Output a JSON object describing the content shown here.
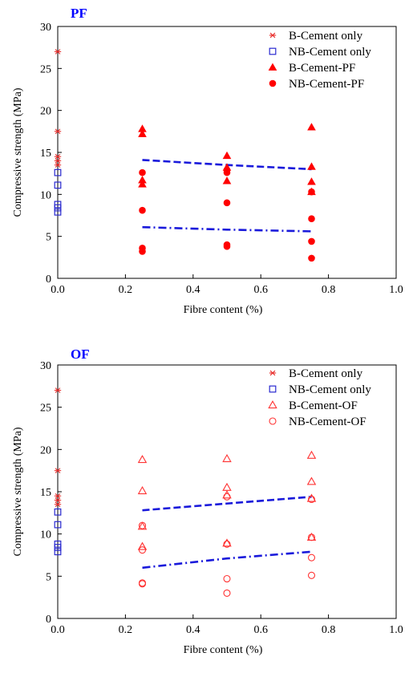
{
  "chart_data": [
    {
      "type": "scatter",
      "title": "PF",
      "xlabel": "Fibre content (%)",
      "ylabel": "Compressive strength (MPa)",
      "xlim": [
        0,
        1.0
      ],
      "ylim": [
        0,
        30
      ],
      "x_ticks": [
        "0.0",
        "0.2",
        "0.4",
        "0.6",
        "0.8",
        "1.0"
      ],
      "y_ticks": [
        "0",
        "5",
        "10",
        "15",
        "20",
        "25",
        "30"
      ],
      "legend_position": "top-right",
      "series": [
        {
          "name": "B-Cement only",
          "marker": "asterisk",
          "color": "#e8302e",
          "points": [
            [
              0,
              27.0
            ],
            [
              0,
              17.5
            ],
            [
              0,
              14.5
            ],
            [
              0,
              14.0
            ],
            [
              0,
              13.5
            ]
          ]
        },
        {
          "name": "NB-Cement only",
          "marker": "square-open",
          "color": "#2a2ad0",
          "points": [
            [
              0,
              12.6
            ],
            [
              0,
              11.1
            ],
            [
              0,
              8.8
            ],
            [
              0,
              8.4
            ],
            [
              0,
              7.9
            ]
          ]
        },
        {
          "name": "B-Cement-PF",
          "marker": "triangle-filled",
          "color": "#ff0000",
          "points": [
            [
              0.25,
              17.8
            ],
            [
              0.25,
              17.2
            ],
            [
              0.25,
              11.7
            ],
            [
              0.25,
              11.2
            ],
            [
              0.5,
              14.6
            ],
            [
              0.5,
              13.2
            ],
            [
              0.5,
              11.6
            ],
            [
              0.75,
              18.0
            ],
            [
              0.75,
              13.3
            ],
            [
              0.75,
              11.5
            ],
            [
              0.75,
              10.3
            ]
          ]
        },
        {
          "name": "NB-Cement-PF",
          "marker": "circle-filled",
          "color": "#ff0000",
          "points": [
            [
              0.25,
              12.6
            ],
            [
              0.25,
              8.1
            ],
            [
              0.25,
              3.6
            ],
            [
              0.25,
              3.2
            ],
            [
              0.5,
              12.9
            ],
            [
              0.5,
              12.6
            ],
            [
              0.5,
              9.0
            ],
            [
              0.5,
              4.0
            ],
            [
              0.5,
              3.8
            ],
            [
              0.75,
              10.3
            ],
            [
              0.75,
              7.1
            ],
            [
              0.75,
              4.4
            ],
            [
              0.75,
              2.4
            ]
          ]
        }
      ],
      "trend_lines": [
        {
          "style": "dashed",
          "color": "#1a1adb",
          "x": [
            0.25,
            0.5,
            0.75
          ],
          "y": [
            14.1,
            13.5,
            13.0
          ]
        },
        {
          "style": "dash-dot",
          "color": "#1a1adb",
          "x": [
            0.25,
            0.5,
            0.75
          ],
          "y": [
            6.1,
            5.8,
            5.6
          ]
        }
      ]
    },
    {
      "type": "scatter",
      "title": "OF",
      "xlabel": "Fibre content (%)",
      "ylabel": "Compressive strength (MPa)",
      "xlim": [
        0,
        1.0
      ],
      "ylim": [
        0,
        30
      ],
      "x_ticks": [
        "0.0",
        "0.2",
        "0.4",
        "0.6",
        "0.8",
        "1.0"
      ],
      "y_ticks": [
        "0",
        "5",
        "10",
        "15",
        "20",
        "25",
        "30"
      ],
      "legend_position": "top-right",
      "series": [
        {
          "name": "B-Cement only",
          "marker": "asterisk",
          "color": "#e8302e",
          "points": [
            [
              0,
              27.0
            ],
            [
              0,
              17.5
            ],
            [
              0,
              14.5
            ],
            [
              0,
              14.0
            ],
            [
              0,
              13.5
            ]
          ]
        },
        {
          "name": "NB-Cement only",
          "marker": "square-open",
          "color": "#2a2ad0",
          "points": [
            [
              0,
              12.6
            ],
            [
              0,
              11.1
            ],
            [
              0,
              8.8
            ],
            [
              0,
              8.4
            ],
            [
              0,
              7.9
            ]
          ]
        },
        {
          "name": "B-Cement-OF",
          "marker": "triangle-open",
          "color": "#ff3333",
          "points": [
            [
              0.25,
              18.8
            ],
            [
              0.25,
              15.1
            ],
            [
              0.25,
              10.9
            ],
            [
              0.25,
              8.5
            ],
            [
              0.5,
              18.9
            ],
            [
              0.5,
              15.5
            ],
            [
              0.5,
              14.6
            ],
            [
              0.5,
              8.9
            ],
            [
              0.75,
              19.3
            ],
            [
              0.75,
              16.2
            ],
            [
              0.75,
              14.2
            ],
            [
              0.75,
              9.6
            ]
          ]
        },
        {
          "name": "NB-Cement-OF",
          "marker": "circle-open",
          "color": "#ff3333",
          "points": [
            [
              0.25,
              11.0
            ],
            [
              0.25,
              8.1
            ],
            [
              0.25,
              4.2
            ],
            [
              0.25,
              4.1
            ],
            [
              0.5,
              14.4
            ],
            [
              0.5,
              8.8
            ],
            [
              0.5,
              4.7
            ],
            [
              0.5,
              3.0
            ],
            [
              0.75,
              14.1
            ],
            [
              0.75,
              9.6
            ],
            [
              0.75,
              7.2
            ],
            [
              0.75,
              5.1
            ]
          ]
        }
      ],
      "trend_lines": [
        {
          "style": "dashed",
          "color": "#1a1adb",
          "x": [
            0.25,
            0.5,
            0.75
          ],
          "y": [
            12.8,
            13.6,
            14.4
          ]
        },
        {
          "style": "dash-dot",
          "color": "#1a1adb",
          "x": [
            0.25,
            0.5,
            0.75
          ],
          "y": [
            6.0,
            7.1,
            7.9
          ]
        }
      ]
    }
  ]
}
